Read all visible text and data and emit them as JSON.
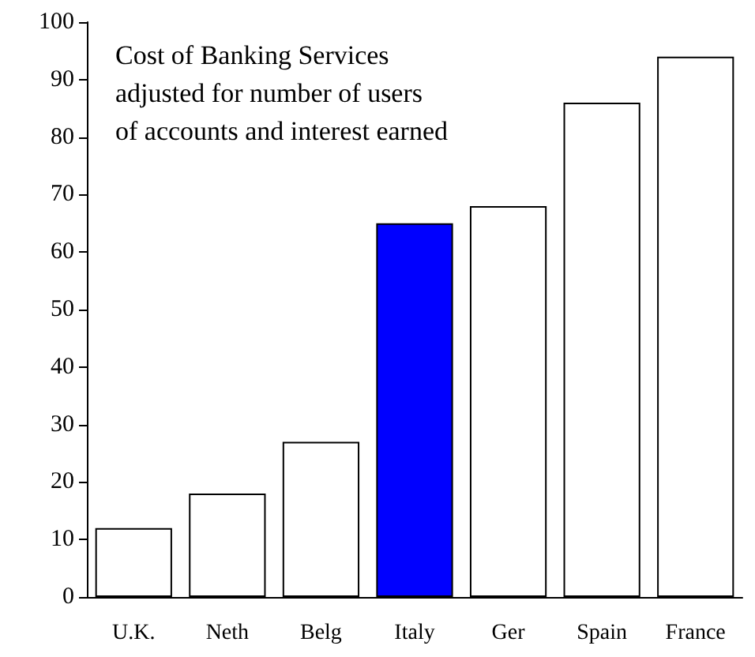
{
  "chart_data": {
    "type": "bar",
    "title": "Cost of Banking Services\nadjusted for number of users\nof accounts and interest earned",
    "categories": [
      "U.K.",
      "Neth",
      "Belg",
      "Italy",
      "Ger",
      "Spain",
      "France"
    ],
    "values": [
      12,
      18,
      27,
      65,
      68,
      86,
      94
    ],
    "colors": [
      "#ffffff",
      "#ffffff",
      "#ffffff",
      "#0000ff",
      "#ffffff",
      "#ffffff",
      "#ffffff"
    ],
    "ylim": [
      0,
      100
    ],
    "yticks": [
      0,
      10,
      20,
      30,
      40,
      50,
      60,
      70,
      80,
      90,
      100
    ],
    "grid": false
  }
}
